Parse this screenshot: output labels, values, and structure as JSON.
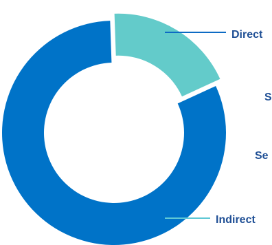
{
  "chart_data": {
    "type": "pie",
    "variant": "donut",
    "title": "",
    "grid": false,
    "legend": "none",
    "series": [
      {
        "name": "",
        "slices": [
          {
            "label": "Direct",
            "value": 18.7,
            "color": "#63cbca",
            "exploded": true
          },
          {
            "label": "Indirect",
            "value": 81.3,
            "color": "#0073c8",
            "exploded": false
          }
        ]
      }
    ],
    "annotations": [
      {
        "label": "Direct",
        "line_color": "#0d6bc4"
      },
      {
        "label": "S",
        "line_color": ""
      },
      {
        "label": "Se",
        "line_color": ""
      },
      {
        "label": "Indirect",
        "line_color": "#5fc8d5"
      }
    ]
  }
}
